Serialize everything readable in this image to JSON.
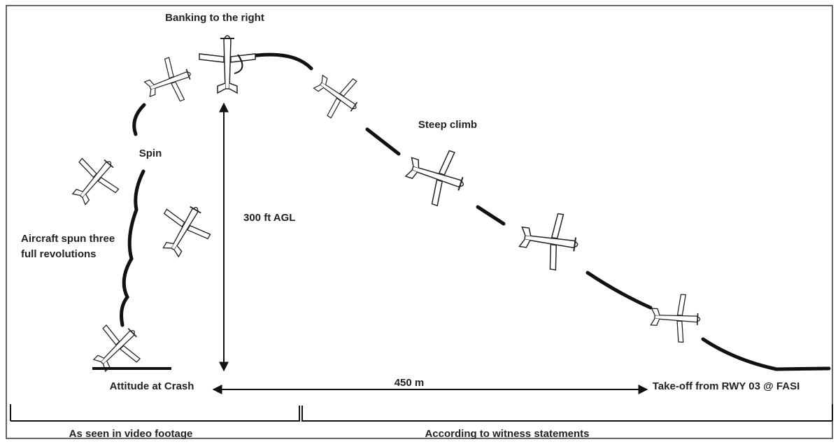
{
  "labels": {
    "banking": "Banking to the right",
    "steep_climb": "Steep climb",
    "spin": "Spin",
    "revolutions": [
      "Aircraft spun three",
      "full revolutions"
    ],
    "height": "300 ft AGL",
    "distance": "450 m",
    "crash": "Attitude at Crash",
    "takeoff": "Take-off from RWY 03 @ FASI",
    "video": "As seen in video footage",
    "witness": "According to witness statements"
  }
}
